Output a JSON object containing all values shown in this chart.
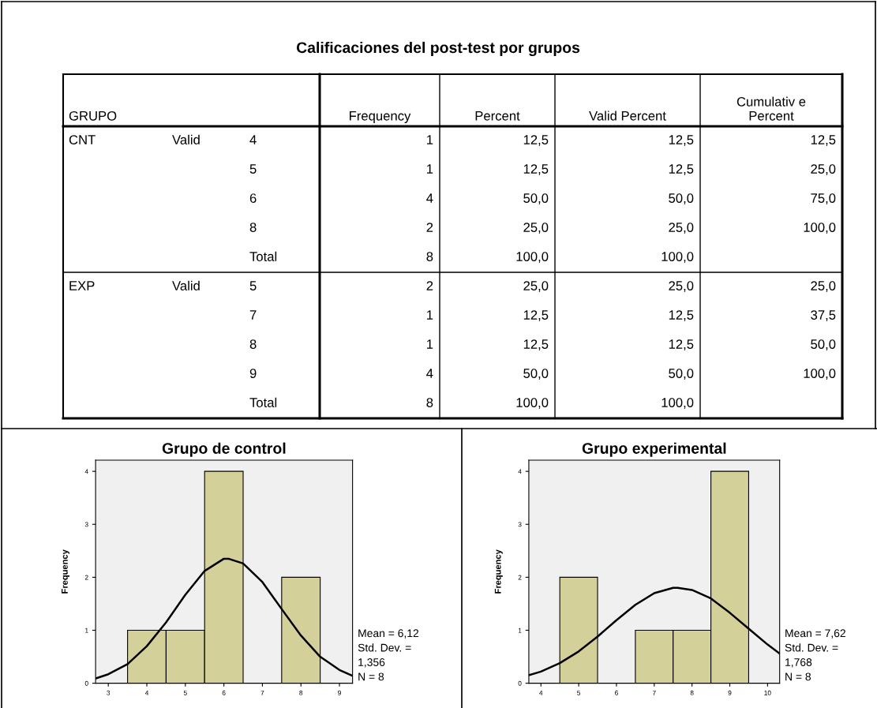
{
  "chart_data": [
    {
      "type": "other",
      "title": "Calificaciones del post-test por grupos",
      "categories": [
        "GRUPO",
        null,
        null,
        "Frequency",
        "Percent",
        "Valid Percent",
        "Cumulativ e\nPercent"
      ],
      "cell_labels": [
        [
          "CNT",
          "Valid",
          "4",
          "1",
          "12,5",
          "12,5",
          "12,5"
        ],
        [
          null,
          null,
          "5",
          "1",
          "12,5",
          "12,5",
          "25,0"
        ],
        [
          null,
          null,
          "6",
          "4",
          "50,0",
          "50,0",
          "75,0"
        ],
        [
          null,
          null,
          "8",
          "2",
          "25,0",
          "25,0",
          "100,0"
        ],
        [
          null,
          null,
          "Total",
          "8",
          "100,0",
          "100,0",
          null
        ],
        [
          "EXP",
          "Valid",
          "5",
          "2",
          "25,0",
          "25,0",
          "25,0"
        ],
        [
          null,
          null,
          "7",
          "1",
          "12,5",
          "12,5",
          "37,5"
        ],
        [
          null,
          null,
          "8",
          "1",
          "12,5",
          "12,5",
          "50,0"
        ],
        [
          null,
          null,
          "9",
          "4",
          "50,0",
          "50,0",
          "100,0"
        ],
        [
          null,
          null,
          "Total",
          "8",
          "100,0",
          "100,0",
          null
        ]
      ]
    },
    {
      "type": "histogram",
      "title": "Grupo de control",
      "ylabel": "Frequency",
      "color": "#d4d09a",
      "bins": [
        3.5,
        4.5,
        5.5,
        6.5,
        7.5,
        8.5
      ],
      "values": [
        1,
        1,
        4,
        0,
        2
      ],
      "xlim": [
        2.67,
        9.34
      ],
      "xticks": [
        3,
        4,
        5,
        6,
        7,
        8,
        9
      ],
      "ylim": [
        0,
        4.21
      ],
      "yticks": [
        0,
        1,
        2,
        3,
        4
      ],
      "grid": false,
      "series": [
        {
          "type": "line",
          "color": "#000000",
          "x": [
            2.67,
            3.0,
            3.5,
            4.0,
            4.5,
            5.0,
            5.5,
            6.0,
            6.12,
            6.5,
            7.0,
            7.5,
            8.0,
            8.5,
            9.0,
            9.34
          ],
          "values": [
            0.09,
            0.17,
            0.36,
            0.7,
            1.15,
            1.67,
            2.12,
            2.35,
            2.35,
            2.26,
            1.91,
            1.4,
            0.9,
            0.5,
            0.25,
            0.14
          ]
        }
      ],
      "annotations": [
        "Mean = 6,12",
        "Std. Dev. =",
        "1,356",
        "N = 8"
      ]
    },
    {
      "type": "histogram",
      "title": "Grupo experimental",
      "ylabel": "Frequency",
      "color": "#d4d09a",
      "bins": [
        4.5,
        5.5,
        6.5,
        7.5,
        8.5,
        9.5
      ],
      "values": [
        2,
        0,
        1,
        1,
        4
      ],
      "xlim": [
        3.68,
        10.32
      ],
      "xticks": [
        4,
        5,
        6,
        7,
        8,
        9,
        10
      ],
      "ylim": [
        0,
        4.21
      ],
      "yticks": [
        0,
        1,
        2,
        3,
        4
      ],
      "grid": false,
      "series": [
        {
          "type": "line",
          "color": "#000000",
          "x": [
            3.68,
            4.0,
            4.5,
            5.0,
            5.5,
            6.0,
            6.5,
            7.0,
            7.5,
            7.62,
            8.0,
            8.5,
            9.0,
            9.5,
            10.0,
            10.32
          ],
          "values": [
            0.15,
            0.22,
            0.38,
            0.6,
            0.88,
            1.19,
            1.48,
            1.7,
            1.8,
            1.8,
            1.76,
            1.6,
            1.33,
            1.03,
            0.73,
            0.56
          ]
        }
      ],
      "annotations": [
        "Mean = 7,62",
        "Std. Dev. =",
        "1,768",
        "N = 8"
      ]
    }
  ]
}
